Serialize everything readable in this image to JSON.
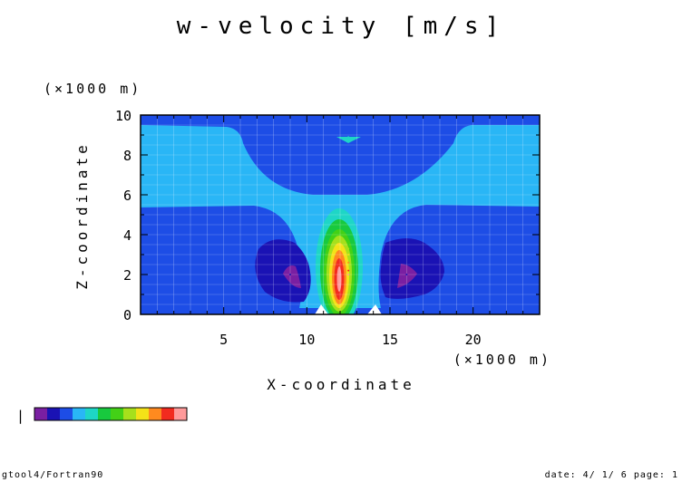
{
  "title": "w-velocity [m/s]",
  "footer_left": "gtool4/Fortran90",
  "footer_right": "date: 4/ 1/ 6 page: 1",
  "colorbar_minus_label": "|",
  "chart_data": {
    "type": "heatmap",
    "title": "w-velocity [m/s]",
    "xlabel": "X-coordinate",
    "ylabel": "Z-coordinate",
    "x_unit": "(×1000 m)",
    "y_unit": "(×1000 m)",
    "xlim": [
      0,
      24
    ],
    "ylim": [
      0,
      10
    ],
    "x_ticks": [
      5,
      10,
      15,
      20
    ],
    "y_ticks": [
      0,
      2,
      4,
      6,
      8,
      10
    ],
    "grid": true,
    "legend": "colorbar below plot, unlabeled",
    "levels": [
      {
        "color": "#7a1fa2"
      },
      {
        "color": "#1a12b4"
      },
      {
        "color": "#1d4de6"
      },
      {
        "color": "#29b6f6"
      },
      {
        "color": "#1ed6c6"
      },
      {
        "color": "#18c93e"
      },
      {
        "color": "#43d116"
      },
      {
        "color": "#a6e01c"
      },
      {
        "color": "#f4e218"
      },
      {
        "color": "#ff8a1f"
      },
      {
        "color": "#f22b1f"
      },
      {
        "color": "#ff9a9a"
      }
    ],
    "background_color": "#1d4de6",
    "cells": [
      {
        "x": 12.5,
        "y": 2.0,
        "level": 11
      },
      {
        "x": 12.5,
        "y": 2.2,
        "level": 10
      },
      {
        "x": 12.5,
        "y": 2.6,
        "level": 9
      },
      {
        "x": 12.5,
        "y": 3.0,
        "level": 8
      },
      {
        "x": 12.5,
        "y": 3.3,
        "level": 7
      },
      {
        "x": 12.5,
        "y": 3.5,
        "level": 6
      },
      {
        "x": 9.0,
        "y": 2.0,
        "level": 1
      },
      {
        "x": 9.2,
        "y": 1.9,
        "level": 0
      },
      {
        "x": 16.0,
        "y": 2.0,
        "level": 1
      },
      {
        "x": 15.8,
        "y": 1.9,
        "level": 0
      },
      {
        "x": 12.5,
        "y": 8.9,
        "level": 4
      }
    ]
  }
}
